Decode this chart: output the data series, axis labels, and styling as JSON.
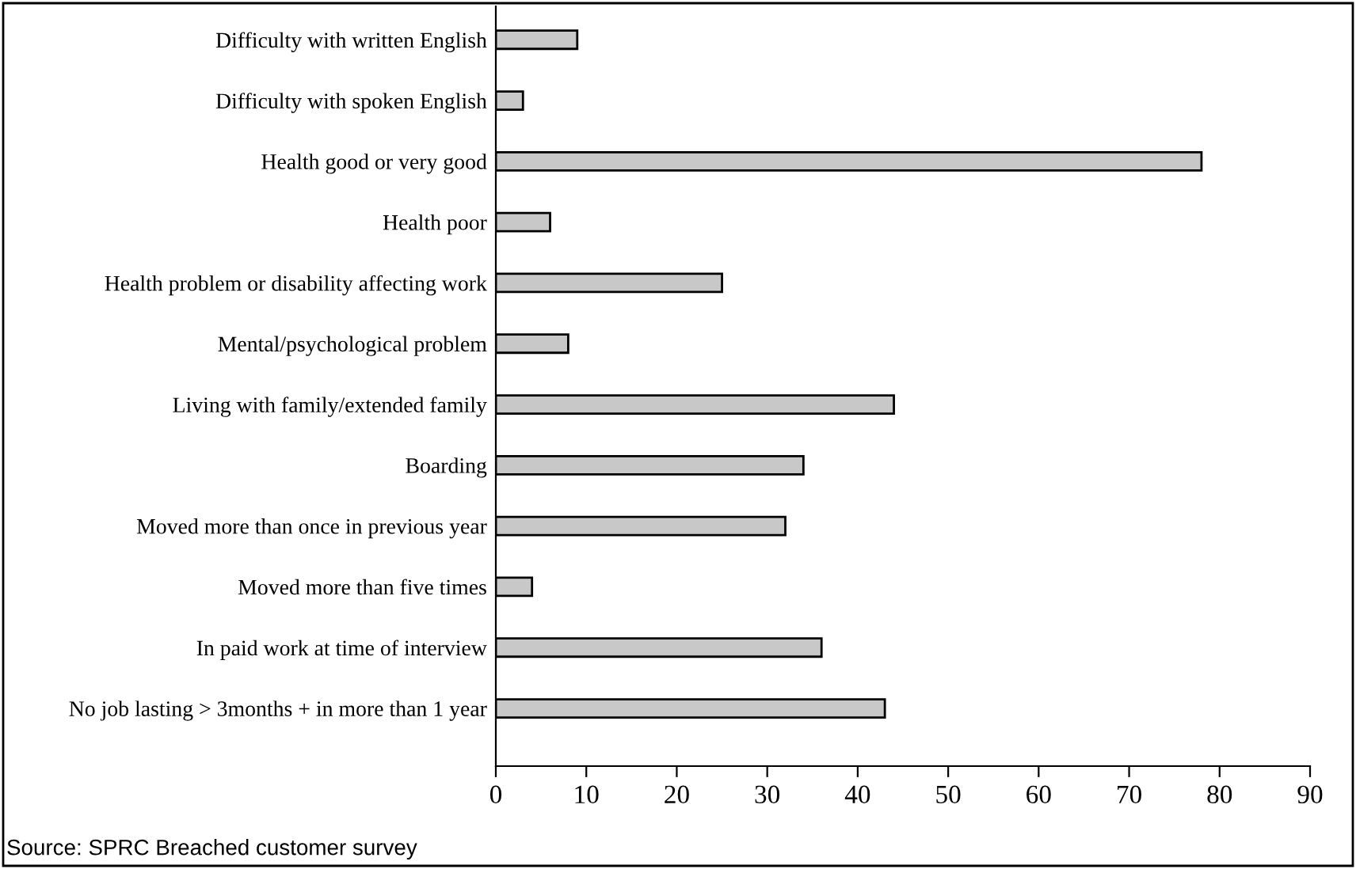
{
  "chart_data": {
    "type": "bar",
    "orientation": "horizontal",
    "categories": [
      "Difficulty with written English",
      "Difficulty with spoken English",
      "Health good or very good",
      "Health poor",
      "Health problem or disability affecting work",
      "Mental/psychological problem",
      "Living with family/extended family",
      "Boarding",
      "Moved more than once in previous year",
      "Moved more than five times",
      "In paid work at time of interview",
      "No job lasting > 3months + in more than 1 year"
    ],
    "values": [
      9,
      3,
      78,
      6,
      25,
      8,
      44,
      34,
      32,
      4,
      36,
      43
    ],
    "color": "#c8c8c8",
    "xlim": [
      0,
      90
    ],
    "xticks": [
      0,
      10,
      20,
      30,
      40,
      50,
      60,
      70,
      80,
      90
    ],
    "grid": false,
    "legend": false,
    "annotations": [
      "Source: SPRC Breached customer survey"
    ]
  }
}
